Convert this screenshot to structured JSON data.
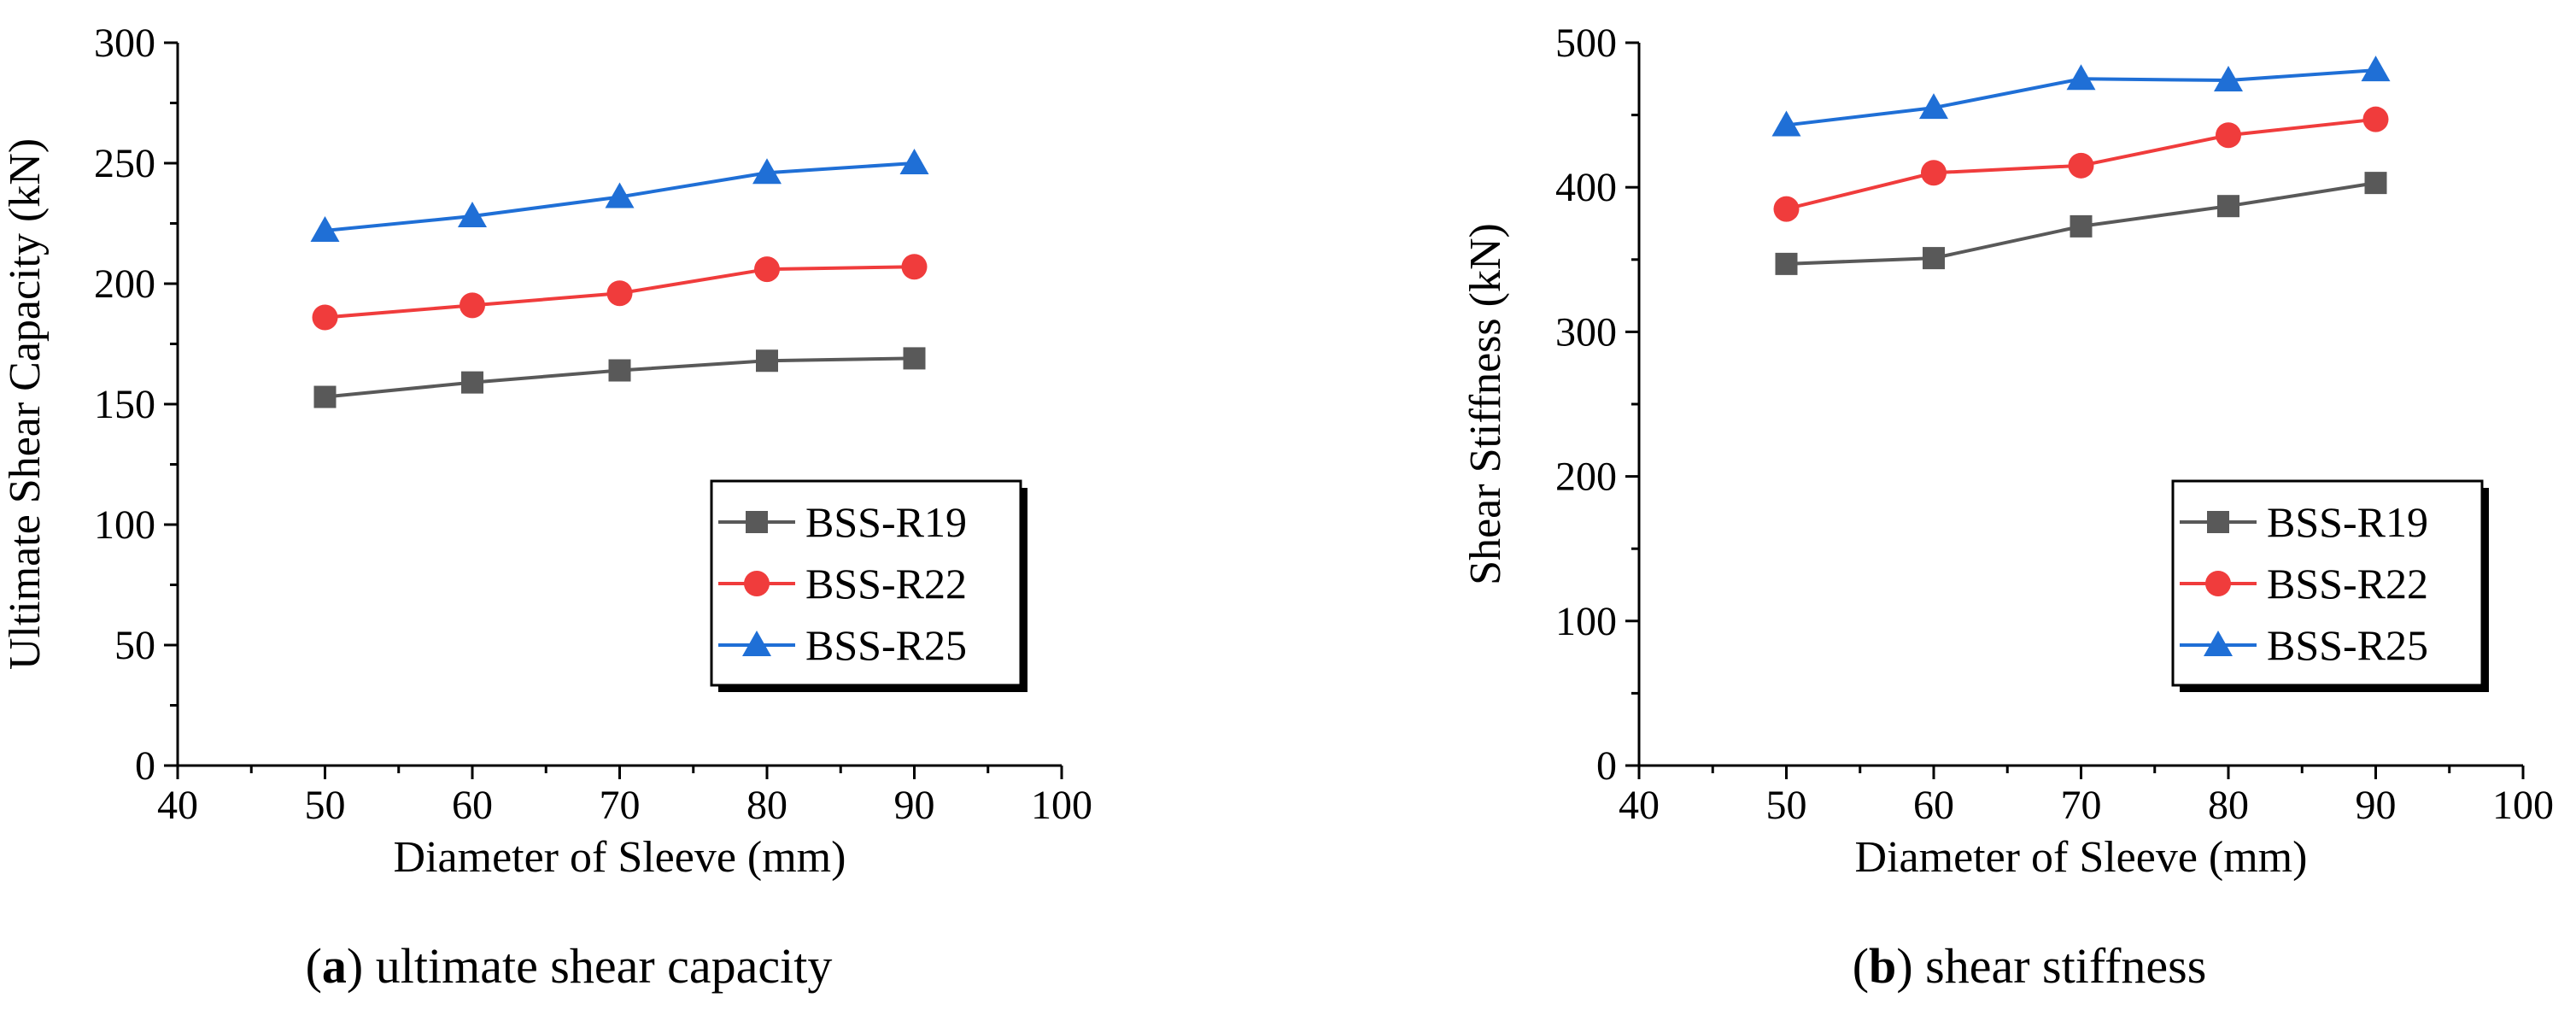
{
  "chart_data": [
    {
      "type": "line",
      "xlabel": "Diameter of Sleeve (mm)",
      "ylabel": "Ultimate Shear Capacity (kN)",
      "xlim": [
        40,
        100
      ],
      "ylim": [
        0,
        300
      ],
      "xticks": [
        40,
        50,
        60,
        70,
        80,
        90,
        100
      ],
      "yticks": [
        0,
        50,
        100,
        150,
        200,
        250,
        300
      ],
      "x": [
        50,
        60,
        70,
        80,
        90
      ],
      "legend_position": "bottom-right",
      "series": [
        {
          "name": "BSS-R19",
          "marker": "square",
          "color": "#595959",
          "values": [
            153,
            159,
            164,
            168,
            169
          ]
        },
        {
          "name": "BSS-R22",
          "marker": "circle",
          "color": "#f03c3c",
          "values": [
            186,
            191,
            196,
            206,
            207
          ]
        },
        {
          "name": "BSS-R25",
          "marker": "triangle",
          "color": "#1f6fd6",
          "values": [
            222,
            228,
            236,
            246,
            250
          ]
        }
      ],
      "caption": {
        "letter": "a",
        "text": " ultimate shear capacity"
      }
    },
    {
      "type": "line",
      "xlabel": "Diameter of Sleeve (mm)",
      "ylabel": "Shear Stiffness (kN)",
      "xlim": [
        40,
        100
      ],
      "ylim": [
        0,
        500
      ],
      "xticks": [
        40,
        50,
        60,
        70,
        80,
        90,
        100
      ],
      "yticks": [
        0,
        100,
        200,
        300,
        400,
        500
      ],
      "x": [
        50,
        60,
        70,
        80,
        90
      ],
      "legend_position": "bottom-right",
      "series": [
        {
          "name": "BSS-R19",
          "marker": "square",
          "color": "#595959",
          "values": [
            347,
            351,
            373,
            387,
            403
          ]
        },
        {
          "name": "BSS-R22",
          "marker": "circle",
          "color": "#f03c3c",
          "values": [
            385,
            410,
            415,
            436,
            447
          ]
        },
        {
          "name": "BSS-R25",
          "marker": "triangle",
          "color": "#1f6fd6",
          "values": [
            443,
            455,
            475,
            474,
            481
          ]
        }
      ],
      "caption": {
        "letter": "b",
        "text": " shear stiffness"
      }
    }
  ]
}
